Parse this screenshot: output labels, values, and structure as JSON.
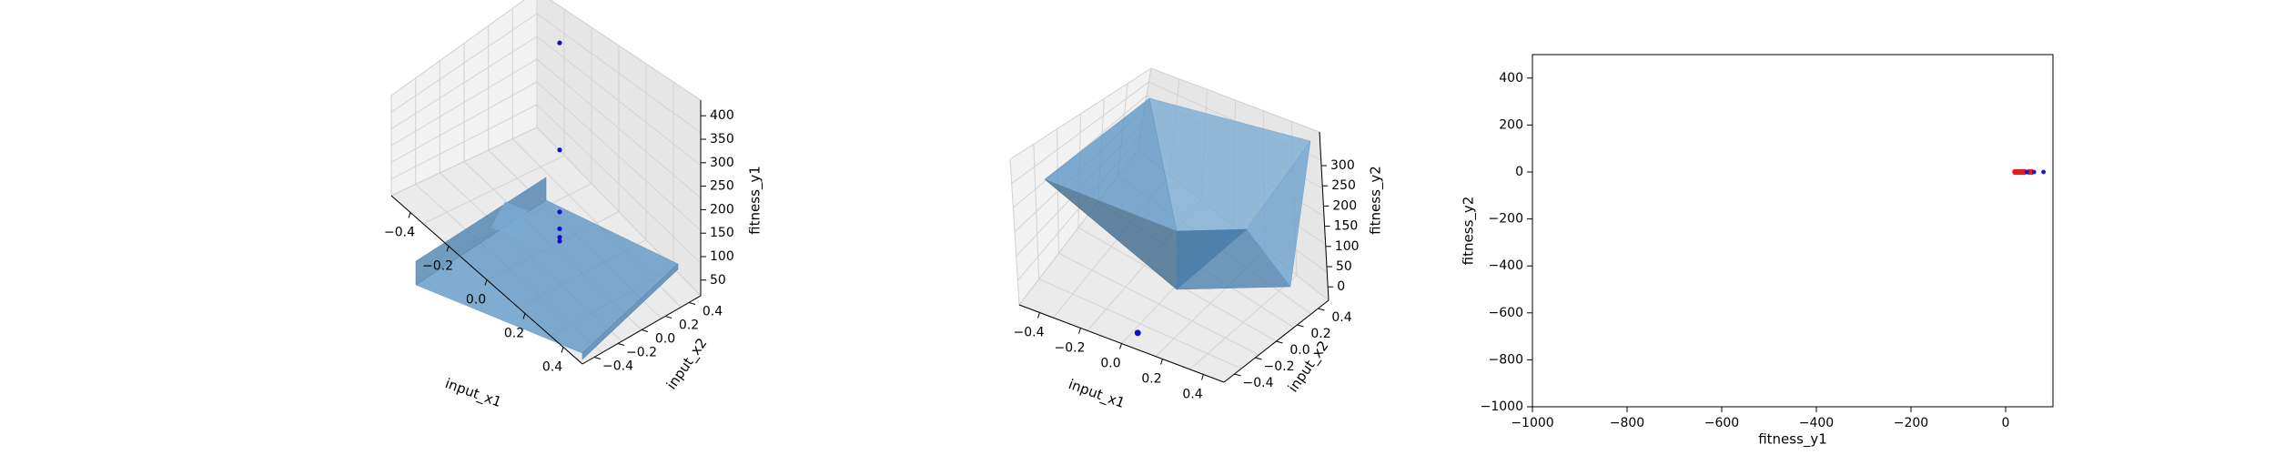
{
  "chart_data": [
    {
      "type": "surface3d",
      "xlabel": "input_x1",
      "ylabel": "input_x2",
      "zlabel": "fitness_y1",
      "x_ticks": [
        "−0.4",
        "−0.2",
        "0.0",
        "0.2",
        "0.4"
      ],
      "y_ticks": [
        "−0.4",
        "−0.2",
        "0.0",
        "0.2",
        "0.4"
      ],
      "z_ticks": [
        "50",
        "100",
        "150",
        "200",
        "250",
        "300",
        "350",
        "400"
      ],
      "xlim": [
        -0.5,
        0.5
      ],
      "ylim": [
        -0.5,
        0.5
      ],
      "zlim": [
        0,
        420
      ],
      "surface_color": "#4f8fc5",
      "points_color": "#1010cc",
      "points": [
        {
          "x": 0.0,
          "y": 0.0,
          "z": 360
        },
        {
          "x": 0.0,
          "y": 0.0,
          "z": 170
        },
        {
          "x": 0.0,
          "y": 0.0,
          "z": 60
        },
        {
          "x": 0.0,
          "y": 0.0,
          "z": 30
        },
        {
          "x": 0.0,
          "y": 0.0,
          "z": 15
        },
        {
          "x": 0.0,
          "y": 0.0,
          "z": 8
        }
      ]
    },
    {
      "type": "surface3d",
      "xlabel": "input_x1",
      "ylabel": "input_x2",
      "zlabel": "fitness_y2",
      "x_ticks": [
        "−0.4",
        "−0.2",
        "0.0",
        "0.2",
        "0.4"
      ],
      "y_ticks": [
        "−0.4",
        "−0.2",
        "0.0",
        "0.2",
        "0.4"
      ],
      "z_ticks": [
        "0",
        "50",
        "100",
        "150",
        "200",
        "250",
        "300"
      ],
      "xlim": [
        -0.5,
        0.5
      ],
      "ylim": [
        -0.5,
        0.5
      ],
      "zlim": [
        -30,
        320
      ],
      "surface_color": "#4f8fc5",
      "points_color": "#1010cc",
      "points": [
        {
          "x": 0.05,
          "y": -0.45,
          "z": -20
        }
      ]
    },
    {
      "type": "scatter",
      "xlabel": "fitness_y1",
      "ylabel": "fitness_y2",
      "x_ticks": [
        -1000,
        -800,
        -600,
        -400,
        -200,
        0
      ],
      "y_ticks": [
        -1000,
        -800,
        -600,
        -400,
        -200,
        0,
        200,
        400
      ],
      "x_tick_labels": [
        "−1000",
        "−800",
        "−600",
        "−400",
        "−200",
        "0"
      ],
      "y_tick_labels": [
        "−1000",
        "−800",
        "−600",
        "−400",
        "−200",
        "0",
        "200",
        "400"
      ],
      "xlim": [
        -1000,
        100
      ],
      "ylim": [
        -1000,
        500
      ],
      "series": [
        {
          "color": "#e02020",
          "points": [
            [
              20,
              0
            ],
            [
              25,
              0
            ],
            [
              30,
              0
            ],
            [
              35,
              0
            ],
            [
              40,
              0
            ],
            [
              50,
              0
            ],
            [
              55,
              0
            ]
          ]
        },
        {
          "color": "#1a1acc",
          "points": [
            [
              45,
              0
            ],
            [
              60,
              0
            ],
            [
              80,
              0
            ]
          ]
        }
      ]
    }
  ]
}
